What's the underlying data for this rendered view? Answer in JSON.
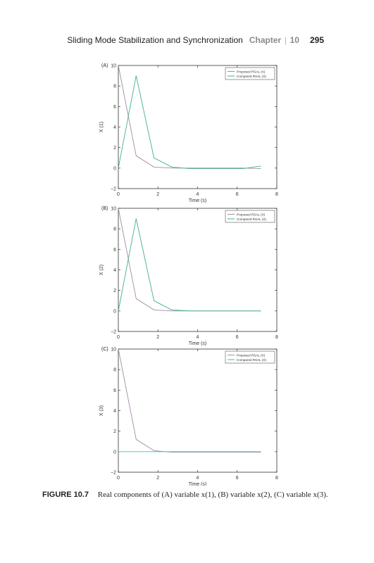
{
  "header": {
    "title": "Sliding Mode Stabilization and Synchronization",
    "chapter_label": "Chapter",
    "separator": "|",
    "chapter_number": "10",
    "page_number": "295"
  },
  "caption": {
    "label": "FIGURE 10.7",
    "text": "Real components of (A) variable x(1), (B) variable x(2), (C) variable x(3)."
  },
  "colors": {
    "proposed": "#a58aa8",
    "compared": "#3fb08a",
    "compared_flat": "#2ec4c0",
    "axis": "#333333"
  },
  "chart_data": [
    {
      "type": "line",
      "panel_label": "(A)",
      "xlabel": "Time (s)",
      "ylabel": "X (1)",
      "xlim": [
        0,
        8
      ],
      "ylim": [
        -2,
        10
      ],
      "xticks": [
        "0",
        "2",
        "4",
        "6",
        "8"
      ],
      "yticks": [
        "−2",
        "0",
        "2",
        "4",
        "6",
        "8",
        "10"
      ],
      "legend_position": "top-right",
      "series": [
        {
          "name": "Proposed RSAL (X)",
          "x": [
            0,
            0.9,
            1.8,
            2.7,
            3.6,
            4.5,
            5.4,
            6.3,
            7.2
          ],
          "y": [
            10,
            1.2,
            0.1,
            0.0,
            0.0,
            0.0,
            0.0,
            0.0,
            -0.05
          ]
        },
        {
          "name": "Compared RSAL (X)",
          "x": [
            0,
            0.9,
            1.8,
            2.7,
            3.6,
            4.5,
            5.4,
            6.3,
            7.2
          ],
          "y": [
            0,
            9.0,
            1.0,
            0.1,
            -0.05,
            -0.05,
            -0.05,
            -0.05,
            0.2
          ]
        }
      ]
    },
    {
      "type": "line",
      "panel_label": "(B)",
      "xlabel": "Time (s)",
      "ylabel": "X (2)",
      "xlim": [
        0,
        8
      ],
      "ylim": [
        -2,
        10
      ],
      "xticks": [
        "0",
        "2",
        "4",
        "6",
        "8"
      ],
      "yticks": [
        "−2",
        "0",
        "2",
        "4",
        "6",
        "8",
        "10"
      ],
      "legend_position": "top-right",
      "series": [
        {
          "name": "Proposed RSAL (X)",
          "x": [
            0,
            0.9,
            1.8,
            2.7,
            3.6,
            4.5,
            5.4,
            6.3,
            7.2
          ],
          "y": [
            10,
            1.2,
            0.1,
            0.0,
            0.0,
            0.0,
            0.0,
            0.0,
            0.0
          ]
        },
        {
          "name": "Compared RSAL (X)",
          "x": [
            0,
            0.9,
            1.8,
            2.7,
            3.6,
            4.5,
            5.4,
            6.3,
            7.2
          ],
          "y": [
            0,
            9.0,
            1.0,
            0.1,
            0.0,
            0.0,
            0.0,
            0.0,
            0.0
          ]
        }
      ]
    },
    {
      "type": "line",
      "panel_label": "(C)",
      "xlabel": "Time (s)",
      "ylabel": "X (3)",
      "xlim": [
        0,
        8
      ],
      "ylim": [
        -2,
        10
      ],
      "xticks": [
        "0",
        "2",
        "4",
        "6",
        "8"
      ],
      "yticks": [
        "−2",
        "0",
        "2",
        "4",
        "6",
        "8",
        "10"
      ],
      "legend_position": "top-right",
      "series": [
        {
          "name": "Proposed RSAL (X)",
          "x": [
            0,
            0.9,
            1.8,
            2.7,
            3.6,
            4.5,
            5.4,
            6.3,
            7.2
          ],
          "y": [
            10,
            1.2,
            0.1,
            -0.05,
            -0.05,
            -0.05,
            -0.05,
            -0.05,
            -0.05
          ]
        },
        {
          "name": "Compared RSAL (X)",
          "x": [
            0,
            0.9,
            1.8,
            2.7,
            3.6,
            4.5,
            5.4,
            6.3,
            7.2
          ],
          "y": [
            0,
            0,
            0,
            0,
            0,
            0,
            0,
            0,
            0
          ]
        }
      ]
    }
  ]
}
